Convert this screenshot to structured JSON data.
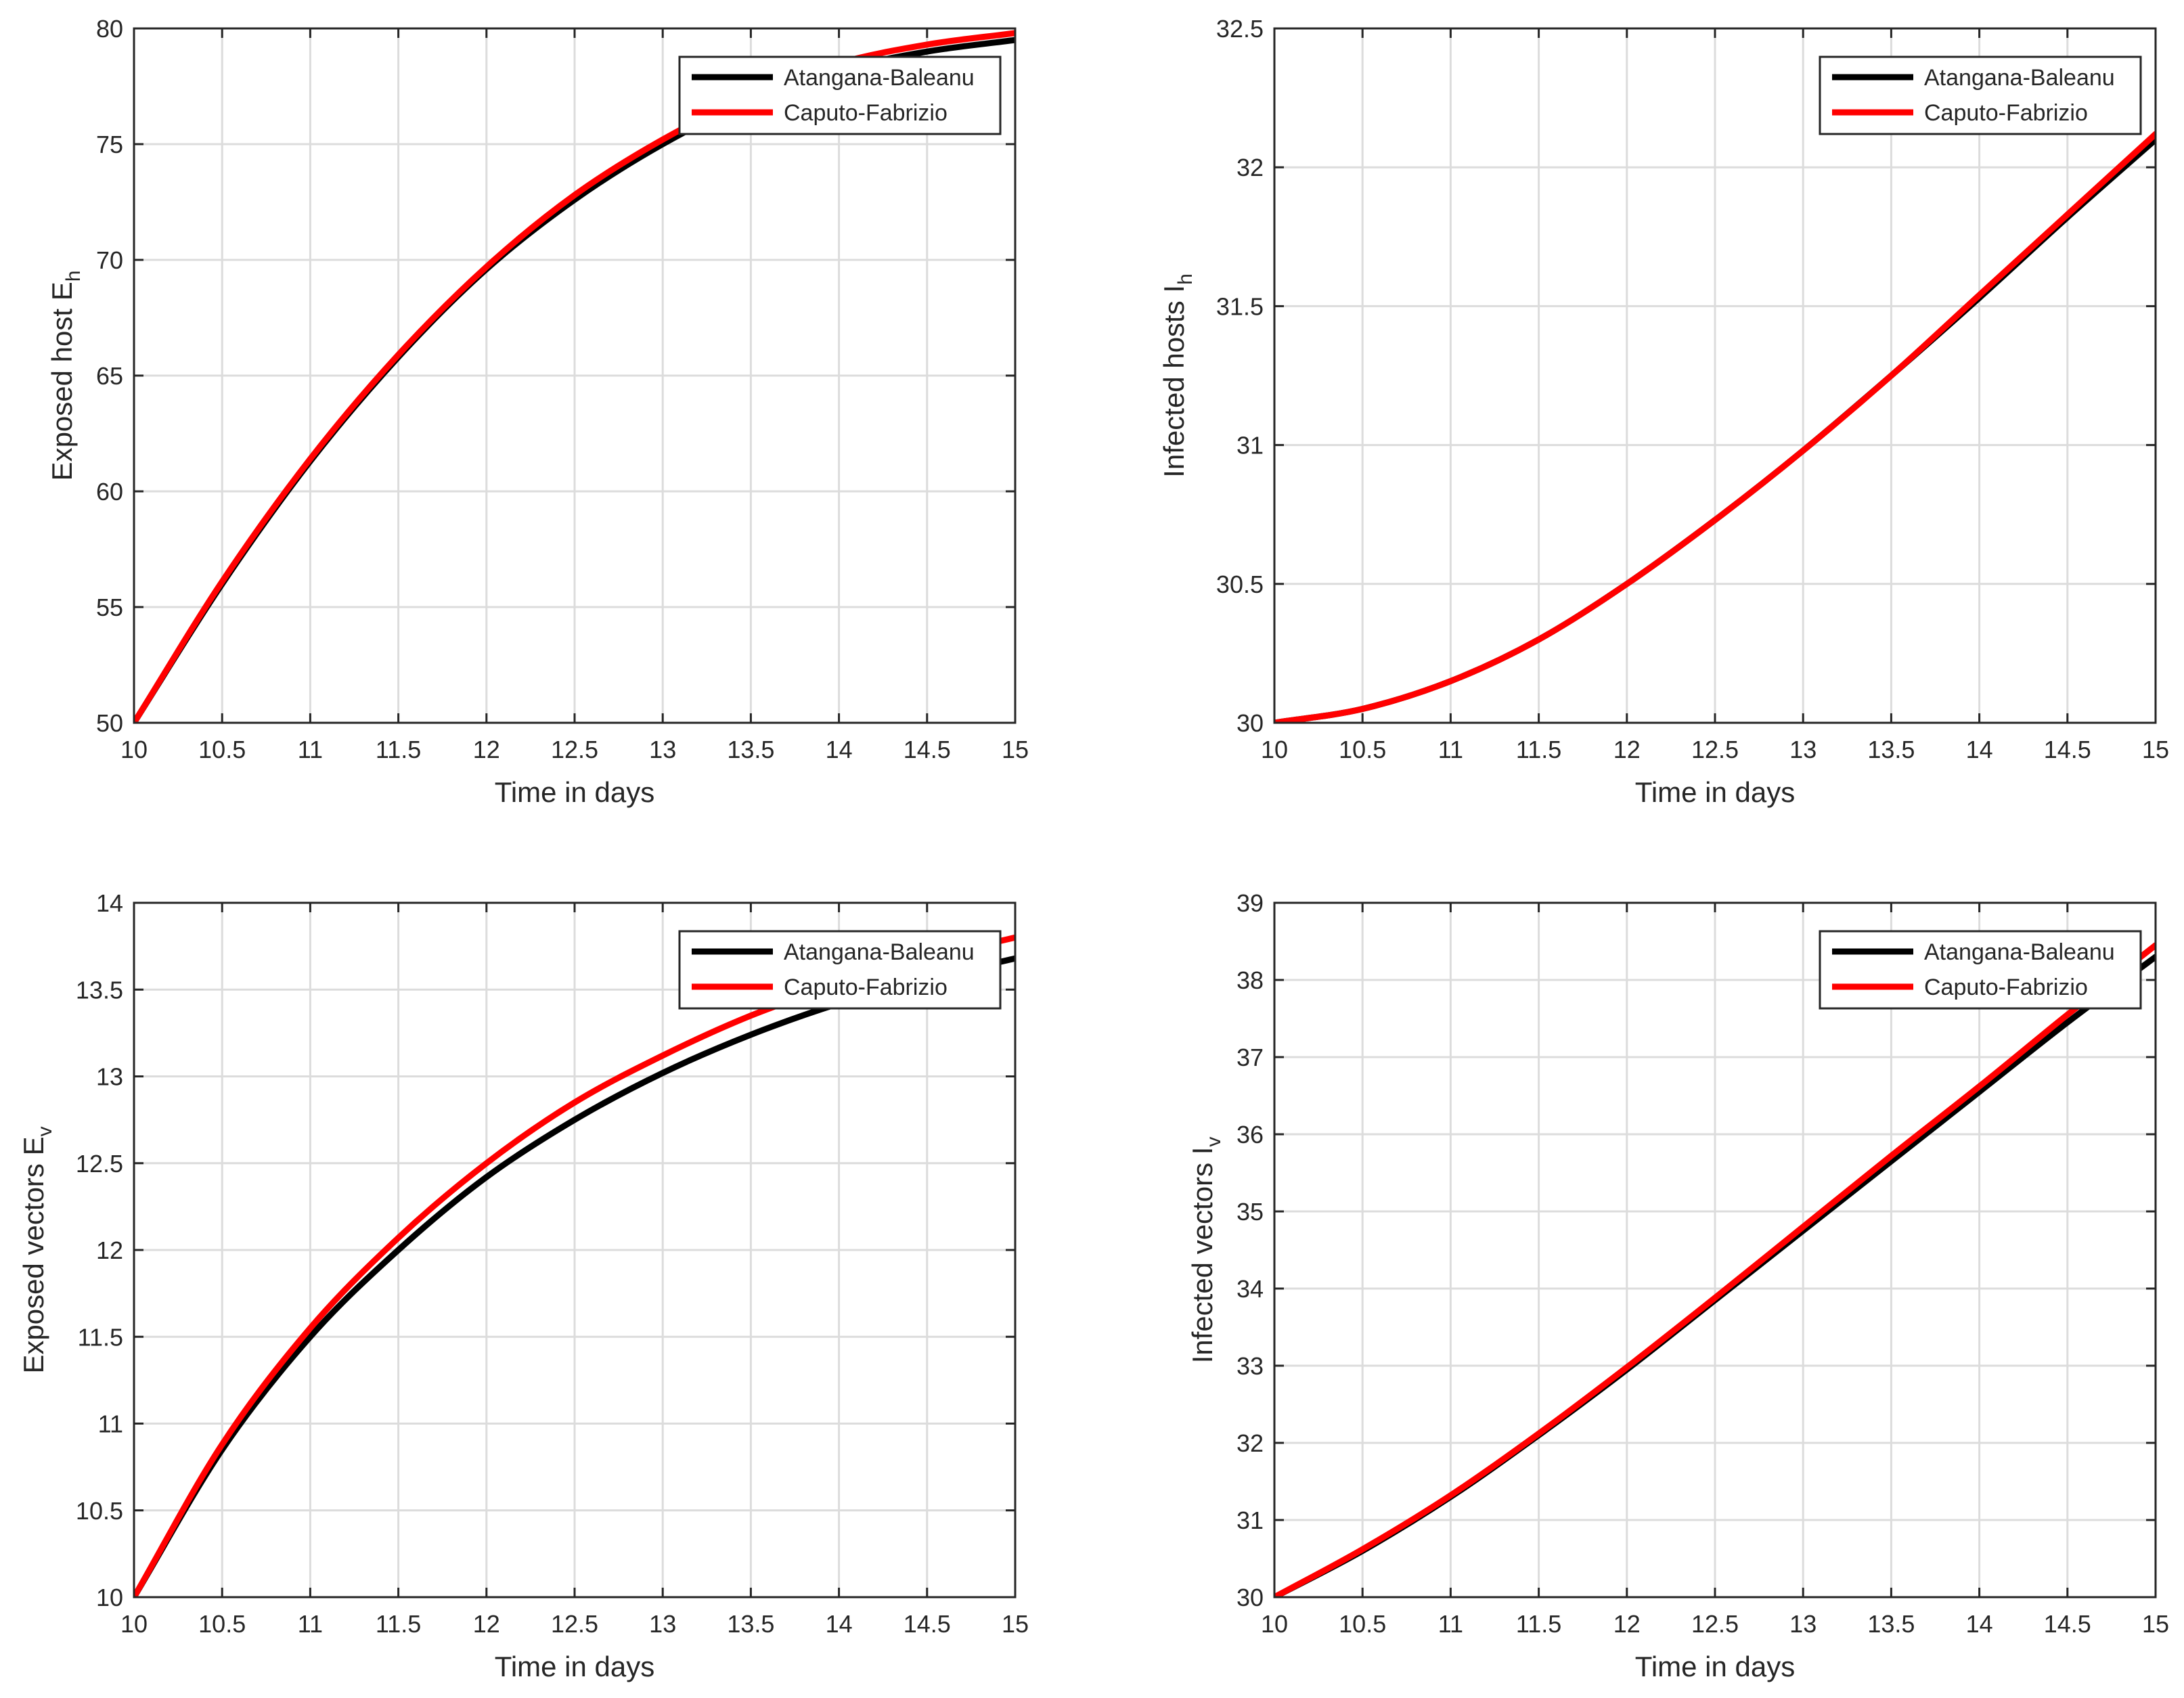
{
  "chart_data": [
    {
      "type": "line",
      "title": "",
      "xlabel": "Time in days",
      "ylabel": "Exposed host E",
      "ylabel_sub": "h",
      "xlim": [
        10,
        15
      ],
      "ylim": [
        50,
        80
      ],
      "xticks": [
        "10",
        "10.5",
        "11",
        "11.5",
        "12",
        "12.5",
        "13",
        "13.5",
        "14",
        "14.5",
        "15"
      ],
      "yticks": [
        "50",
        "55",
        "60",
        "65",
        "70",
        "75",
        "80"
      ],
      "grid": true,
      "legend": "top-right",
      "x": [
        10,
        10.5,
        11,
        11.5,
        12,
        12.5,
        13,
        13.5,
        14,
        14.5,
        15
      ],
      "series": [
        {
          "name": "Atangana-Baleanu",
          "color": "#000000",
          "values": [
            50,
            56.0,
            61.3,
            65.8,
            69.6,
            72.6,
            75.0,
            76.9,
            78.2,
            79.0,
            79.5
          ]
        },
        {
          "name": "Caputo-Fabrizio",
          "color": "#ff0000",
          "values": [
            50,
            56.1,
            61.4,
            65.9,
            69.7,
            72.8,
            75.2,
            77.1,
            78.5,
            79.3,
            79.8
          ]
        }
      ]
    },
    {
      "type": "line",
      "title": "",
      "xlabel": "Time in days",
      "ylabel": "Infected  hosts I",
      "ylabel_sub": "h",
      "xlim": [
        10,
        15
      ],
      "ylim": [
        30,
        32.5
      ],
      "xticks": [
        "10",
        "10.5",
        "11",
        "11.5",
        "12",
        "12.5",
        "13",
        "13.5",
        "14",
        "14.5",
        "15"
      ],
      "yticks": [
        "30",
        "30.5",
        "31",
        "31.5",
        "32",
        "32.5"
      ],
      "grid": true,
      "legend": "top-right",
      "x": [
        10,
        10.5,
        11,
        11.5,
        12,
        12.5,
        13,
        13.5,
        14,
        14.5,
        15
      ],
      "series": [
        {
          "name": "Atangana-Baleanu",
          "color": "#000000",
          "values": [
            30.0,
            30.05,
            30.15,
            30.3,
            30.5,
            30.73,
            30.98,
            31.25,
            31.53,
            31.82,
            32.1
          ]
        },
        {
          "name": "Caputo-Fabrizio",
          "color": "#ff0000",
          "values": [
            30.0,
            30.05,
            30.15,
            30.3,
            30.5,
            30.73,
            30.98,
            31.25,
            31.54,
            31.83,
            32.12
          ]
        }
      ]
    },
    {
      "type": "line",
      "title": "",
      "xlabel": "Time in days",
      "ylabel": "Exposed vectors E",
      "ylabel_sub": "v",
      "xlim": [
        10,
        15
      ],
      "ylim": [
        10,
        14
      ],
      "xticks": [
        "10",
        "10.5",
        "11",
        "11.5",
        "12",
        "12.5",
        "13",
        "13.5",
        "14",
        "14.5",
        "15"
      ],
      "yticks": [
        "10",
        "10.5",
        "11",
        "11.5",
        "12",
        "12.5",
        "13",
        "13.5",
        "14"
      ],
      "grid": true,
      "legend": "top-right",
      "x": [
        10,
        10.5,
        11,
        11.5,
        12,
        12.5,
        13,
        13.5,
        14,
        14.5,
        15
      ],
      "series": [
        {
          "name": "Atangana-Baleanu",
          "color": "#000000",
          "values": [
            10.0,
            10.85,
            11.5,
            12.0,
            12.42,
            12.75,
            13.02,
            13.24,
            13.42,
            13.56,
            13.68
          ]
        },
        {
          "name": "Caputo-Fabrizio",
          "color": "#ff0000",
          "values": [
            10.0,
            10.88,
            11.55,
            12.07,
            12.5,
            12.85,
            13.12,
            13.35,
            13.53,
            13.68,
            13.8
          ]
        }
      ]
    },
    {
      "type": "line",
      "title": "",
      "xlabel": "Time in days",
      "ylabel": "Infected vectors I",
      "ylabel_sub": "v",
      "xlim": [
        10,
        15
      ],
      "ylim": [
        30,
        39
      ],
      "xticks": [
        "10",
        "10.5",
        "11",
        "11.5",
        "12",
        "12.5",
        "13",
        "13.5",
        "14",
        "14.5",
        "15"
      ],
      "yticks": [
        "30",
        "31",
        "32",
        "33",
        "34",
        "35",
        "36",
        "37",
        "38",
        "39"
      ],
      "grid": true,
      "legend": "top-right",
      "x": [
        10,
        10.5,
        11,
        11.5,
        12,
        12.5,
        13,
        13.5,
        14,
        14.5,
        15
      ],
      "series": [
        {
          "name": "Atangana-Baleanu",
          "color": "#000000",
          "values": [
            30.0,
            30.6,
            31.3,
            32.1,
            32.95,
            33.85,
            34.75,
            35.65,
            36.55,
            37.45,
            38.3
          ]
        },
        {
          "name": "Caputo-Fabrizio",
          "color": "#ff0000",
          "values": [
            30.0,
            30.62,
            31.32,
            32.12,
            32.98,
            33.88,
            34.8,
            35.72,
            36.62,
            37.55,
            38.45
          ]
        }
      ]
    }
  ]
}
